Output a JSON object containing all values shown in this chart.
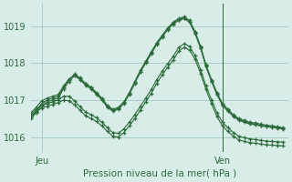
{
  "title": "",
  "xlabel": "Pression niveau de la mer( hPa )",
  "bg_color": "#d8ede8",
  "grid_color": "#aacfc8",
  "line_color": "#2d6b3c",
  "yticks": [
    1016,
    1017,
    1018,
    1019
  ],
  "ylim": [
    1015.6,
    1019.6
  ],
  "xlim": [
    0,
    47
  ],
  "xtick_positions": [
    2,
    35
  ],
  "xtick_labels": [
    "Jeu",
    "Ven"
  ],
  "vline_x": 35,
  "series": [
    [
      1016.55,
      1016.7,
      1016.9,
      1017.0,
      1017.05,
      1017.1,
      1017.35,
      1017.55,
      1017.7,
      1017.6,
      1017.45,
      1017.35,
      1017.2,
      1017.05,
      1016.85,
      1016.75,
      1016.8,
      1016.95,
      1017.2,
      1017.5,
      1017.8,
      1018.05,
      1018.3,
      1018.55,
      1018.75,
      1018.95,
      1019.1,
      1019.2,
      1019.25,
      1019.15,
      1018.85,
      1018.45,
      1017.95,
      1017.55,
      1017.2,
      1016.9,
      1016.75,
      1016.6,
      1016.5,
      1016.45,
      1016.4,
      1016.38,
      1016.35,
      1016.32,
      1016.3,
      1016.28,
      1016.25
    ],
    [
      1016.5,
      1016.65,
      1016.85,
      1016.95,
      1017.0,
      1017.05,
      1017.3,
      1017.5,
      1017.65,
      1017.55,
      1017.4,
      1017.3,
      1017.15,
      1017.0,
      1016.8,
      1016.7,
      1016.75,
      1016.9,
      1017.15,
      1017.45,
      1017.75,
      1018.0,
      1018.25,
      1018.5,
      1018.7,
      1018.9,
      1019.05,
      1019.15,
      1019.2,
      1019.1,
      1018.8,
      1018.4,
      1017.9,
      1017.5,
      1017.15,
      1016.85,
      1016.7,
      1016.55,
      1016.45,
      1016.4,
      1016.35,
      1016.33,
      1016.3,
      1016.28,
      1016.26,
      1016.24,
      1016.22
    ],
    [
      1016.65,
      1016.8,
      1016.98,
      1017.05,
      1017.1,
      1017.15,
      1017.38,
      1017.57,
      1017.68,
      1017.58,
      1017.43,
      1017.33,
      1017.18,
      1017.02,
      1016.82,
      1016.72,
      1016.77,
      1016.92,
      1017.17,
      1017.47,
      1017.77,
      1018.02,
      1018.27,
      1018.52,
      1018.72,
      1018.92,
      1019.07,
      1019.17,
      1019.22,
      1019.12,
      1018.82,
      1018.42,
      1017.92,
      1017.52,
      1017.17,
      1016.87,
      1016.72,
      1016.57,
      1016.47,
      1016.42,
      1016.37,
      1016.35,
      1016.32,
      1016.3,
      1016.28,
      1016.26,
      1016.24
    ],
    [
      1016.6,
      1016.75,
      1016.85,
      1016.9,
      1016.95,
      1017.0,
      1017.1,
      1017.1,
      1016.98,
      1016.82,
      1016.68,
      1016.6,
      1016.52,
      1016.4,
      1016.25,
      1016.12,
      1016.1,
      1016.22,
      1016.4,
      1016.6,
      1016.82,
      1017.05,
      1017.28,
      1017.55,
      1017.78,
      1017.98,
      1018.18,
      1018.42,
      1018.52,
      1018.45,
      1018.2,
      1017.82,
      1017.38,
      1017.0,
      1016.65,
      1016.4,
      1016.25,
      1016.12,
      1016.02,
      1015.98,
      1015.95,
      1015.93,
      1015.91,
      1015.89,
      1015.88,
      1015.87,
      1015.86
    ],
    [
      1016.55,
      1016.68,
      1016.78,
      1016.83,
      1016.88,
      1016.93,
      1017.0,
      1016.98,
      1016.87,
      1016.72,
      1016.58,
      1016.5,
      1016.42,
      1016.3,
      1016.15,
      1016.02,
      1016.0,
      1016.12,
      1016.3,
      1016.5,
      1016.72,
      1016.95,
      1017.18,
      1017.45,
      1017.68,
      1017.88,
      1018.08,
      1018.32,
      1018.42,
      1018.35,
      1018.1,
      1017.72,
      1017.28,
      1016.9,
      1016.55,
      1016.3,
      1016.15,
      1016.02,
      1015.92,
      1015.88,
      1015.85,
      1015.83,
      1015.81,
      1015.79,
      1015.78,
      1015.77,
      1015.76
    ]
  ]
}
